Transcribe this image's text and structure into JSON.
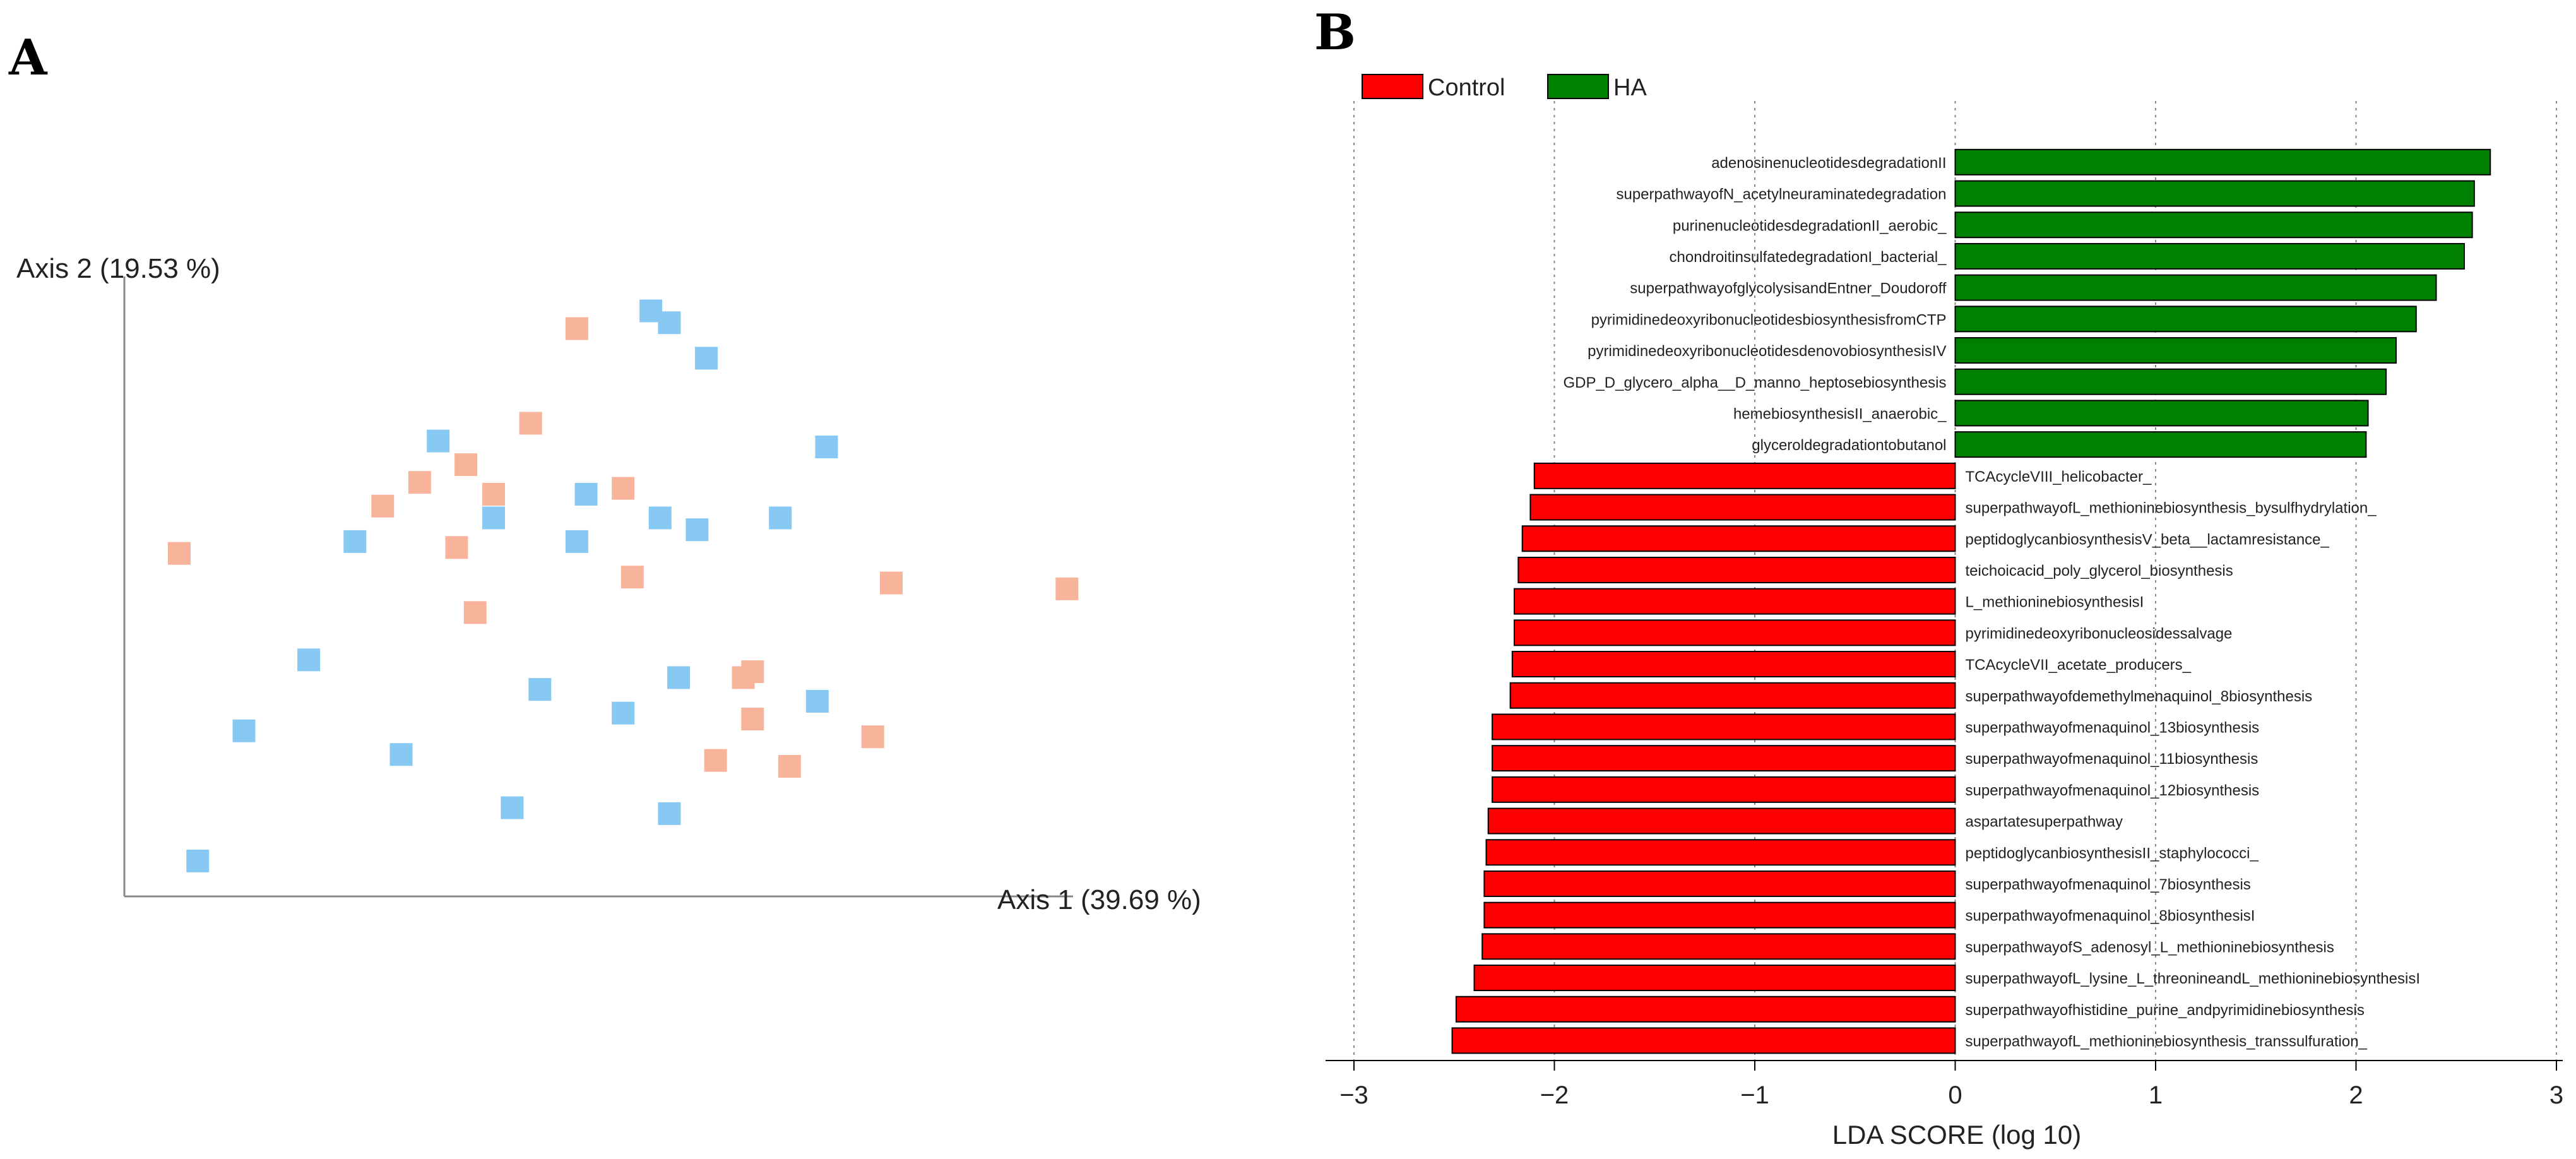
{
  "panels": {
    "a_label": "A",
    "b_label": "B"
  },
  "chart_data": [
    {
      "type": "scatter",
      "xlabel": "Axis 1 (39.69 %)",
      "ylabel": "Axis 2 (19.53 %)",
      "xlim": [
        0,
        100
      ],
      "ylim": [
        0,
        100
      ],
      "series": [
        {
          "color": "#f7b49a",
          "points": [
            [
              3,
              55
            ],
            [
              46,
              93
            ],
            [
              41,
              77
            ],
            [
              34,
              70
            ],
            [
              29,
              67
            ],
            [
              25,
              63
            ],
            [
              33,
              56
            ],
            [
              37,
              65
            ],
            [
              51,
              66
            ],
            [
              52,
              51
            ],
            [
              35,
              45
            ],
            [
              80,
              50
            ],
            [
              99,
              49
            ],
            [
              65,
              35
            ],
            [
              64,
              34
            ],
            [
              65,
              27
            ],
            [
              78,
              24
            ],
            [
              61,
              20
            ],
            [
              69,
              19
            ]
          ]
        },
        {
          "color": "#88c9f4",
          "points": [
            [
              54,
              96
            ],
            [
              56,
              94
            ],
            [
              60,
              88
            ],
            [
              31,
              74
            ],
            [
              73,
              73
            ],
            [
              37,
              61
            ],
            [
              47,
              65
            ],
            [
              55,
              61
            ],
            [
              59,
              59
            ],
            [
              68,
              61
            ],
            [
              22,
              57
            ],
            [
              46,
              57
            ],
            [
              17,
              37
            ],
            [
              42,
              32
            ],
            [
              57,
              34
            ],
            [
              51,
              28
            ],
            [
              72,
              30
            ],
            [
              10,
              25
            ],
            [
              27,
              21
            ],
            [
              39,
              12
            ],
            [
              56,
              11
            ],
            [
              5,
              3
            ]
          ]
        }
      ]
    },
    {
      "type": "bar",
      "orientation": "horizontal",
      "xlabel": "LDA SCORE (log 10)",
      "xlim": [
        -3,
        3
      ],
      "xticks": [
        "−3",
        "−2",
        "−1",
        "0",
        "1",
        "2",
        "3"
      ],
      "legend": [
        {
          "name": "Control",
          "color": "#ff0000"
        },
        {
          "name": "HA",
          "color": "#008000"
        }
      ],
      "grid": "vertical dotted",
      "bars": [
        {
          "label": "adenosinenucleotidesdegradationII",
          "value": 2.67,
          "group": "HA"
        },
        {
          "label": "superpathwayofN_acetylneuraminatedegradation",
          "value": 2.59,
          "group": "HA"
        },
        {
          "label": "purinenucleotidesdegradationII_aerobic_",
          "value": 2.58,
          "group": "HA"
        },
        {
          "label": "chondroitinsulfatedegradationI_bacterial_",
          "value": 2.54,
          "group": "HA"
        },
        {
          "label": "superpathwayofglycolysisandEntner_Doudoroff",
          "value": 2.4,
          "group": "HA"
        },
        {
          "label": "pyrimidinedeoxyribonucleotidesbiosynthesisfromCTP",
          "value": 2.3,
          "group": "HA"
        },
        {
          "label": "pyrimidinedeoxyribonucleotidesdenovobiosynthesisIV",
          "value": 2.2,
          "group": "HA"
        },
        {
          "label": "GDP_D_glycero_alpha__D_manno_heptosebiosynthesis",
          "value": 2.15,
          "group": "HA"
        },
        {
          "label": "hemebiosynthesisII_anaerobic_",
          "value": 2.06,
          "group": "HA"
        },
        {
          "label": "glyceroldegradationtobutanol",
          "value": 2.05,
          "group": "HA"
        },
        {
          "label": "TCAcycleVIII_helicobacter_",
          "value": -2.1,
          "group": "Control"
        },
        {
          "label": "superpathwayofL_methioninebiosynthesis_bysulfhydrylation_",
          "value": -2.12,
          "group": "Control"
        },
        {
          "label": "peptidoglycanbiosynthesisV_beta__lactamresistance_",
          "value": -2.16,
          "group": "Control"
        },
        {
          "label": "teichoicacid_poly_glycerol_biosynthesis",
          "value": -2.18,
          "group": "Control"
        },
        {
          "label": "L_methioninebiosynthesisI",
          "value": -2.2,
          "group": "Control"
        },
        {
          "label": "pyrimidinedeoxyribonucleosidessalvage",
          "value": -2.2,
          "group": "Control"
        },
        {
          "label": "TCAcycleVII_acetate_producers_",
          "value": -2.21,
          "group": "Control"
        },
        {
          "label": "superpathwayofdemethylmenaquinol_8biosynthesis",
          "value": -2.22,
          "group": "Control"
        },
        {
          "label": "superpathwayofmenaquinol_13biosynthesis",
          "value": -2.31,
          "group": "Control"
        },
        {
          "label": "superpathwayofmenaquinol_11biosynthesis",
          "value": -2.31,
          "group": "Control"
        },
        {
          "label": "superpathwayofmenaquinol_12biosynthesis",
          "value": -2.31,
          "group": "Control"
        },
        {
          "label": "aspartatesuperpathway",
          "value": -2.33,
          "group": "Control"
        },
        {
          "label": "peptidoglycanbiosynthesisII_staphylococci_",
          "value": -2.34,
          "group": "Control"
        },
        {
          "label": "superpathwayofmenaquinol_7biosynthesis",
          "value": -2.35,
          "group": "Control"
        },
        {
          "label": "superpathwayofmenaquinol_8biosynthesisI",
          "value": -2.35,
          "group": "Control"
        },
        {
          "label": "superpathwayofS_adenosyl_L_methioninebiosynthesis",
          "value": -2.36,
          "group": "Control"
        },
        {
          "label": "superpathwayofL_lysine_L_threonineandL_methioninebiosynthesisI",
          "value": -2.4,
          "group": "Control"
        },
        {
          "label": "superpathwayofhistidine_purine_andpyrimidinebiosynthesis",
          "value": -2.49,
          "group": "Control"
        },
        {
          "label": "superpathwayofL_methioninebiosynthesis_transsulfuration_",
          "value": -2.51,
          "group": "Control"
        }
      ]
    }
  ]
}
